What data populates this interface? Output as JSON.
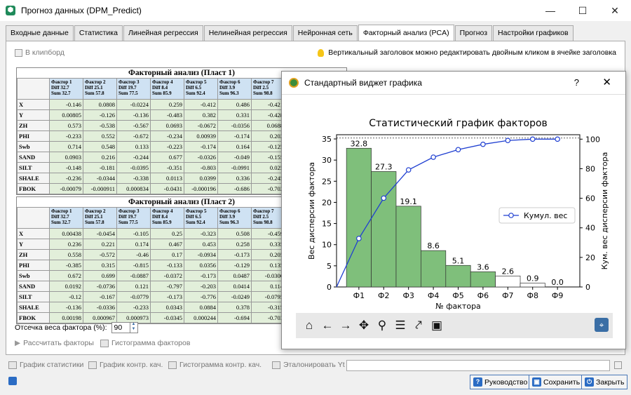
{
  "window": {
    "title": "Прогноз данных (DPM_Predict)",
    "minimize": "—",
    "maximize": "☐",
    "close": "✕"
  },
  "tabs": [
    "Входные данные",
    "Статистика",
    "Линейная регрессия",
    "Нелинейная регрессия",
    "Нейронная сеть",
    "Факторный анализ (PCA)",
    "Прогноз",
    "Настройки графиков"
  ],
  "active_tab_index": 5,
  "toolbar": {
    "clipboard": "В клипборд",
    "hint": "Вертикальный заголовок можно редактировать двойным кликом в ячейке заголовка"
  },
  "factor_headers": [
    [
      "Фактор 1",
      "Diff 32.7",
      "Sum 32.7"
    ],
    [
      "Фактор 2",
      "Diff 25.1",
      "Sum 57.8"
    ],
    [
      "Фактор 3",
      "Diff 19.7",
      "Sum 77.5"
    ],
    [
      "Фактор 4",
      "Diff 8.4",
      "Sum 85.9"
    ],
    [
      "Фактор 5",
      "Diff 6.5",
      "Sum 92.4"
    ],
    [
      "Фактор 6",
      "Diff 3.9",
      "Sum 96.3"
    ],
    [
      "Фактор 7",
      "Diff 2.5",
      "Sum 98.8"
    ]
  ],
  "table1": {
    "title": "Факторный анализ (Пласт 1)",
    "rows": [
      {
        "label": "X",
        "values": [
          "-0.146",
          "0.0808",
          "-0.0224",
          "0.259",
          "-0.412",
          "0.486",
          "-0.421"
        ]
      },
      {
        "label": "Y",
        "values": [
          "0.00805",
          "-0.126",
          "-0.136",
          "-0.483",
          "0.382",
          "0.331",
          "-0.428"
        ]
      },
      {
        "label": "ZH",
        "values": [
          "0.573",
          "-0.538",
          "-0.567",
          "0.0693",
          "-0.0672",
          "-0.0356",
          "0.0688"
        ]
      },
      {
        "label": "PHI",
        "values": [
          "-0.233",
          "0.552",
          "-0.672",
          "-0.234",
          "0.00939",
          "-0.174",
          "0.202"
        ]
      },
      {
        "label": "Swb",
        "values": [
          "0.714",
          "0.548",
          "0.133",
          "-0.223",
          "-0.174",
          "0.164",
          "-0.125"
        ]
      },
      {
        "label": "SAND",
        "values": [
          "0.0903",
          "0.216",
          "-0.244",
          "0.677",
          "-0.0326",
          "-0.049",
          "-0.155"
        ]
      },
      {
        "label": "SILT",
        "values": [
          "-0.148",
          "-0.181",
          "-0.0395",
          "-0.351",
          "-0.803",
          "-0.0991",
          "0.025"
        ]
      },
      {
        "label": "SHALE",
        "values": [
          "-0.236",
          "-0.0344",
          "-0.338",
          "0.0113",
          "0.0399",
          "0.336",
          "-0.245"
        ]
      },
      {
        "label": "FBOK",
        "values": [
          "-0.00079",
          "-0.000911",
          "0.000834",
          "-0.0431",
          "-0.000196",
          "-0.686",
          "-0.702"
        ]
      }
    ]
  },
  "table2": {
    "title": "Факторный анализ (Пласт 2)",
    "rows": [
      {
        "label": "X",
        "values": [
          "0.00438",
          "-0.0454",
          "-0.105",
          "0.25",
          "-0.323",
          "0.508",
          "-0.459"
        ]
      },
      {
        "label": "Y",
        "values": [
          "0.236",
          "0.221",
          "0.174",
          "0.467",
          "0.453",
          "0.258",
          "0.335"
        ]
      },
      {
        "label": "ZH",
        "values": [
          "0.558",
          "-0.572",
          "-0.46",
          "0.17",
          "-0.0934",
          "-0.173",
          "0.205"
        ]
      },
      {
        "label": "PHI",
        "values": [
          "-0.385",
          "0.315",
          "-0.815",
          "-0.133",
          "0.0356",
          "-0.129",
          "0.135"
        ]
      },
      {
        "label": "Swb",
        "values": [
          "0.672",
          "0.699",
          "-0.0887",
          "-0.0372",
          "-0.173",
          "0.0487",
          "-0.0306"
        ]
      },
      {
        "label": "SAND",
        "values": [
          "0.0192",
          "-0.0736",
          "0.121",
          "-0.797",
          "-0.203",
          "0.0414",
          "0.114"
        ]
      },
      {
        "label": "SILT",
        "values": [
          "-0.12",
          "-0.167",
          "-0.0779",
          "-0.173",
          "-0.776",
          "-0.0249",
          "-0.0795"
        ]
      },
      {
        "label": "SHALE",
        "values": [
          "-0.136",
          "-0.0336",
          "-0.233",
          "0.0343",
          "0.0884",
          "0.378",
          "-0.315"
        ]
      },
      {
        "label": "FBOK",
        "values": [
          "0.00198",
          "0.000967",
          "0.000973",
          "-0.0345",
          "0.000244",
          "-0.694",
          "-0.703"
        ]
      }
    ]
  },
  "cutoff": {
    "label": "Отсечка веса фактора (%):",
    "value": "90"
  },
  "actions": {
    "calc": "Рассчитать факторы",
    "hist": "Гистограмма факторов"
  },
  "bottom": {
    "stat_chart": "График статистики",
    "ctrl_chart": "График контр. кач.",
    "ctrl_hist": "Гистограмма контр. кач.",
    "calibrate": "Эталонировать Yt"
  },
  "buttons": {
    "guide": "Руководство",
    "save": "Сохранить",
    "close": "Закрыть"
  },
  "dialog": {
    "title": "Стандартный виджет графика",
    "help": "?",
    "close": "✕"
  },
  "chart_data": {
    "type": "bar",
    "title": "Статистический график факторов",
    "xlabel": "№ фактора",
    "ylabel": "Вес дисперсии фактора",
    "y2label": "Кум. вес дисперсии фактора",
    "categories": [
      "Ф1",
      "Ф2",
      "Ф3",
      "Ф4",
      "Ф5",
      "Ф6",
      "Ф7",
      "Ф8",
      "Ф9"
    ],
    "values": [
      32.8,
      27.3,
      19.1,
      8.6,
      5.1,
      3.6,
      2.6,
      0.9,
      0.0
    ],
    "value_labels": [
      "32.8",
      "27.3",
      "19.1",
      "8.6",
      "5.1",
      "3.6",
      "2.6",
      "0.9",
      "0.0"
    ],
    "bar_colors": [
      "#7fbf7b",
      "#7fbf7b",
      "#7fbf7b",
      "#7fbf7b",
      "#7fbf7b",
      "#7fbf7b",
      "#ffffff",
      "#ffffff",
      "#ffffff"
    ],
    "ylim": [
      0,
      36
    ],
    "yticks": [
      0,
      5,
      10,
      15,
      20,
      25,
      30,
      35
    ],
    "y2lim": [
      0,
      103
    ],
    "y2ticks": [
      0,
      20,
      40,
      60,
      80,
      100
    ],
    "cumulative": {
      "name": "Кумул. вес",
      "x": [
        0,
        1,
        2,
        3,
        4,
        5,
        6,
        7,
        8,
        9
      ],
      "values": [
        0,
        32.8,
        60.1,
        79.2,
        87.8,
        92.9,
        96.5,
        99.1,
        100.0,
        100.0
      ]
    },
    "cutoff_line_y": 35.2,
    "legend": "center-right",
    "line_color": "#1f3fd1"
  }
}
